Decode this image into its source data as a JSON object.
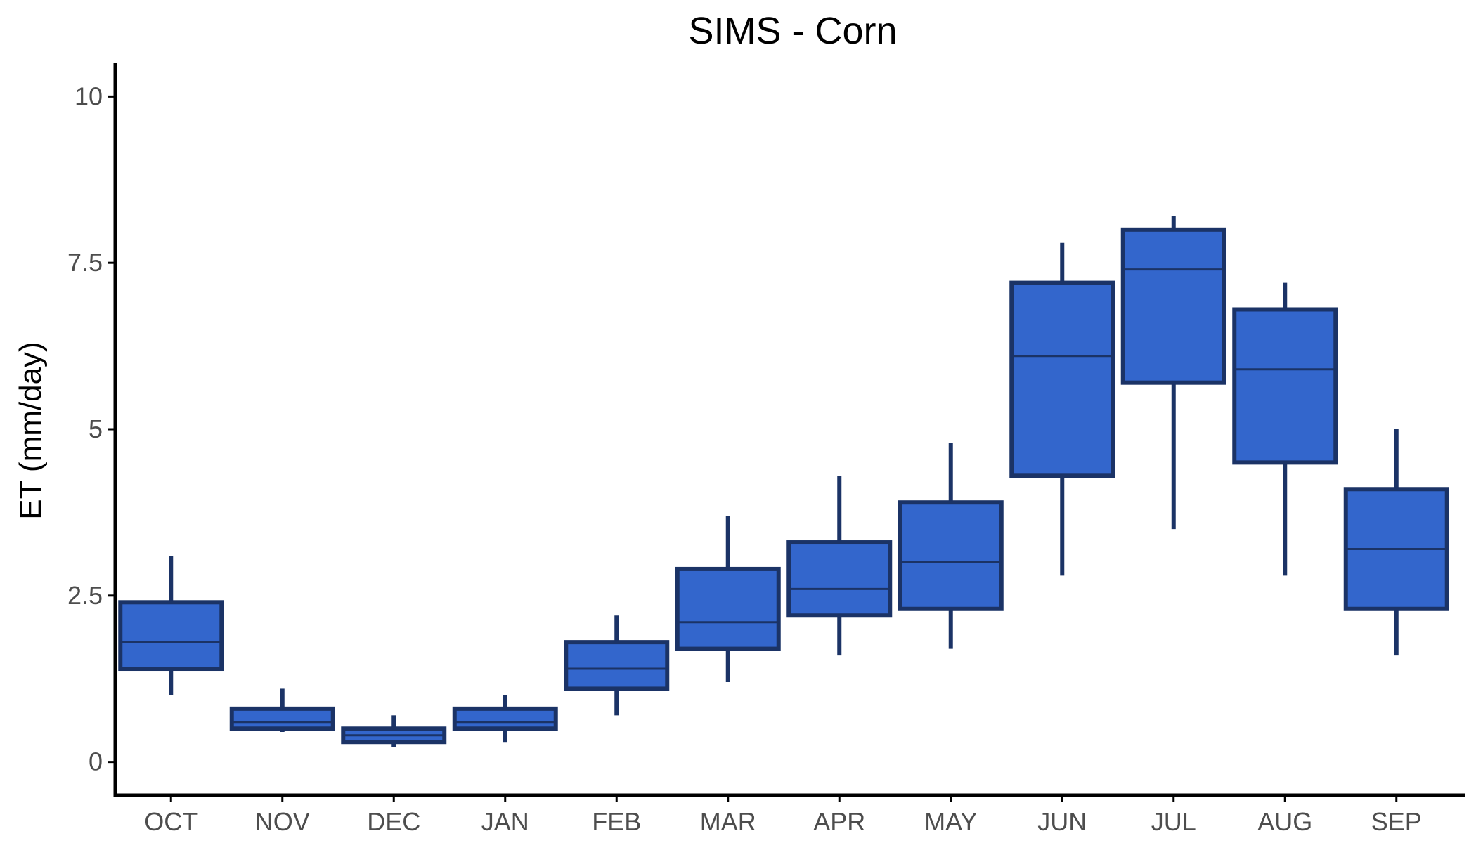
{
  "chart_data": {
    "type": "box",
    "title": "SIMS - Corn",
    "xlabel": "",
    "ylabel": "ET (mm/day)",
    "ylim": [
      -0.5,
      10.5
    ],
    "y_ticks": [
      0,
      2.5,
      5,
      7.5,
      10
    ],
    "y_tick_labels": [
      "0",
      "2.5",
      "5",
      "7.5",
      "10"
    ],
    "grid": false,
    "legend": "none",
    "colors": {
      "box_fill": "#3366cc",
      "box_outline": "#1b3366",
      "axis": "#000000"
    },
    "categories": [
      "OCT",
      "NOV",
      "DEC",
      "JAN",
      "FEB",
      "MAR",
      "APR",
      "MAY",
      "JUN",
      "JUL",
      "AUG",
      "SEP"
    ],
    "boxes": [
      {
        "category": "OCT",
        "whisker_low": 1.0,
        "q1": 1.4,
        "median": 1.8,
        "q3": 2.4,
        "whisker_high": 3.1
      },
      {
        "category": "NOV",
        "whisker_low": 0.45,
        "q1": 0.5,
        "median": 0.6,
        "q3": 0.8,
        "whisker_high": 1.1
      },
      {
        "category": "DEC",
        "whisker_low": 0.22,
        "q1": 0.3,
        "median": 0.4,
        "q3": 0.5,
        "whisker_high": 0.7
      },
      {
        "category": "JAN",
        "whisker_low": 0.3,
        "q1": 0.5,
        "median": 0.6,
        "q3": 0.8,
        "whisker_high": 1.0
      },
      {
        "category": "FEB",
        "whisker_low": 0.7,
        "q1": 1.1,
        "median": 1.4,
        "q3": 1.8,
        "whisker_high": 2.2
      },
      {
        "category": "MAR",
        "whisker_low": 1.2,
        "q1": 1.7,
        "median": 2.1,
        "q3": 2.9,
        "whisker_high": 3.7
      },
      {
        "category": "APR",
        "whisker_low": 1.6,
        "q1": 2.2,
        "median": 2.6,
        "q3": 3.3,
        "whisker_high": 4.3
      },
      {
        "category": "MAY",
        "whisker_low": 1.7,
        "q1": 2.3,
        "median": 3.0,
        "q3": 3.9,
        "whisker_high": 4.8
      },
      {
        "category": "JUN",
        "whisker_low": 2.8,
        "q1": 4.3,
        "median": 6.1,
        "q3": 7.2,
        "whisker_high": 7.8
      },
      {
        "category": "JUL",
        "whisker_low": 3.5,
        "q1": 5.7,
        "median": 7.4,
        "q3": 8.0,
        "whisker_high": 8.2
      },
      {
        "category": "AUG",
        "whisker_low": 2.8,
        "q1": 4.5,
        "median": 5.9,
        "q3": 6.8,
        "whisker_high": 7.2
      },
      {
        "category": "SEP",
        "whisker_low": 1.6,
        "q1": 2.3,
        "median": 3.2,
        "q3": 4.1,
        "whisker_high": 5.0
      }
    ]
  }
}
